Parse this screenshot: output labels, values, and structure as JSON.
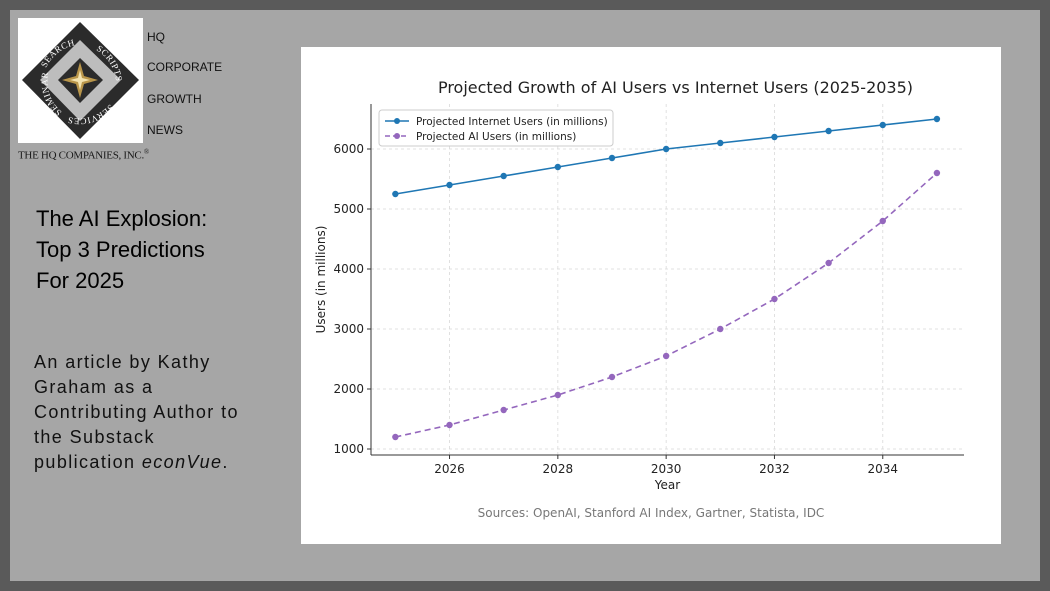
{
  "logo": {
    "segments": [
      "SEARCH",
      "SCRIPTS",
      "SERVICES",
      "SEMINARS"
    ],
    "company": "THE HQ COMPANIES, INC.",
    "registered_mark": "®",
    "words": [
      "HQ",
      "CORPORATE",
      "GROWTH",
      "NEWS"
    ],
    "colors": {
      "dark": "#2b2b2b",
      "light": "#bdbdbd",
      "gold": "#b8954a"
    }
  },
  "headline": {
    "lines": [
      "The AI Explosion:",
      "Top 3 Predictions",
      "For 2025"
    ]
  },
  "article_note": {
    "text": "An article by Kathy Graham as a Contributing Author to the Substack publication ",
    "publication": "econVue",
    "end": "."
  },
  "sources": "Sources: OpenAI, Stanford AI Index, Gartner, Statista, IDC",
  "chart_data": {
    "type": "line",
    "title": "Projected Growth of AI Users vs Internet Users (2025-2035)",
    "xlabel": "Year",
    "ylabel": "Users (in millions)",
    "x": [
      2025,
      2026,
      2027,
      2028,
      2029,
      2030,
      2031,
      2032,
      2033,
      2034,
      2035
    ],
    "xticks": [
      2026,
      2028,
      2030,
      2032,
      2034
    ],
    "yticks": [
      1000,
      2000,
      3000,
      4000,
      5000,
      6000
    ],
    "xlim": [
      2024.55,
      2035.5
    ],
    "ylim": [
      900,
      6750
    ],
    "grid": true,
    "legend_position": "top-left",
    "series": [
      {
        "name": "Projected Internet Users (in millions)",
        "color": "#1f77b4",
        "linestyle": "solid",
        "values": [
          5250,
          5400,
          5550,
          5700,
          5850,
          6000,
          6100,
          6200,
          6300,
          6400,
          6500
        ]
      },
      {
        "name": "Projected AI Users (in millions)",
        "color": "#9467bd",
        "linestyle": "dashed",
        "values": [
          1200,
          1400,
          1650,
          1900,
          2200,
          2550,
          3000,
          3500,
          4100,
          4800,
          5600
        ]
      }
    ]
  }
}
